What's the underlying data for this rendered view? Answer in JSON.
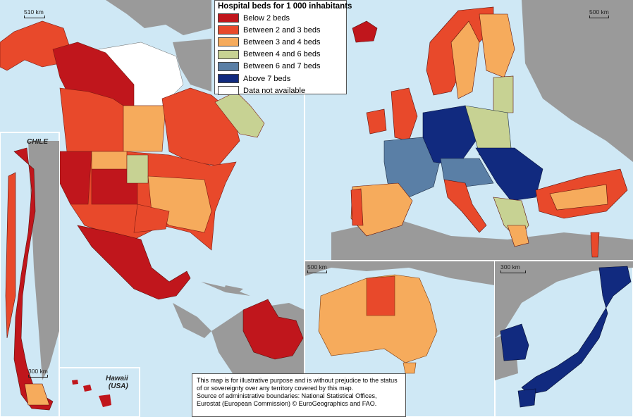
{
  "legend": {
    "title": "Hospital beds for 1 000 inhabitants",
    "items": [
      {
        "label": "Below 2 beds",
        "color": "#c0161c"
      },
      {
        "label": "Between 2 and 3 beds",
        "color": "#e8492b"
      },
      {
        "label": "Between 3 and 4 beds",
        "color": "#f6ab5c"
      },
      {
        "label": "Between 4 and 6 beds",
        "color": "#c7d293"
      },
      {
        "label": "Between 6 and 7 beds",
        "color": "#5a7fa6"
      },
      {
        "label": "Above 7 beds",
        "color": "#112a7f"
      },
      {
        "label": "Data not available",
        "color": "#ffffff"
      }
    ]
  },
  "disclaimer": {
    "line1": "This map is for illustrative purpose and is without prejudice to the status of or sovereignty over any territory covered by this map.",
    "line2": "Source of administrative boundaries: National Statistical Offices, Eurostat (European Commission) © EuroGeographics and FAO."
  },
  "insets": {
    "chile": "CHILE",
    "hawaii_line1": "Hawaii",
    "hawaii_line2": "(USA)"
  },
  "scales": {
    "north_america": "510 km",
    "europe": "500 km",
    "australia": "500 km",
    "japan_korea": "300 km",
    "chile": "300 km"
  },
  "colors": {
    "sea": "#cfe8f5",
    "land_other": "#9a9a9a",
    "frame": "#ffffff"
  }
}
